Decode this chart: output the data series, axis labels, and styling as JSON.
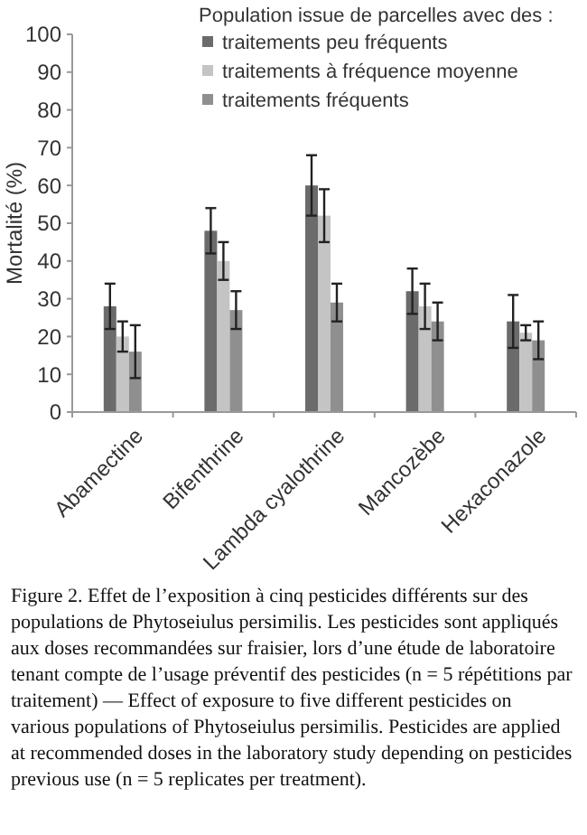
{
  "chart_data": {
    "type": "bar",
    "ylabel": "Mortalité (%)",
    "legend_title": "Population issue de parcelles avec des :",
    "categories": [
      "Abamectine",
      "Bifenthrine",
      "Lambda cyalothrine",
      "Mancozèbe",
      "Hexaconazole"
    ],
    "series": [
      {
        "name": "traitements peu fréquents",
        "color": "#6b6b6b",
        "values": [
          28,
          48,
          60,
          32,
          24
        ],
        "errors": [
          6,
          6,
          8,
          6,
          7
        ]
      },
      {
        "name": "traitements à fréquence moyenne",
        "color": "#c4c4c4",
        "values": [
          20,
          40,
          52,
          28,
          21
        ],
        "errors": [
          4,
          5,
          7,
          6,
          2
        ]
      },
      {
        "name": "traitements fréquents",
        "color": "#8f8f8f",
        "values": [
          16,
          27,
          29,
          24,
          19
        ],
        "errors": [
          7,
          5,
          5,
          5,
          5
        ]
      }
    ],
    "ylim": [
      0,
      100
    ],
    "yticks": [
      0,
      10,
      20,
      30,
      40,
      50,
      60,
      70,
      80,
      90,
      100
    ],
    "grid": false,
    "legend": "top right",
    "annotations": [
      "Figure 2. Effet de l’exposition à cinq pesticides différents sur des populations de Phytoseiulus persimilis. Les pesticides sont appliqués aux doses recommandées sur fraisier, lors d’une étude de laboratoire tenant compte de l’usage préventif des pesticides (n = 5 répétitions par traitement) — Effect of exposure to five different pesticides on various populations of Phytoseiulus persimilis. Pesticides are applied at recommended doses in the laboratory study depending on pesticides previous use (n = 5 replicates per treatment)."
    ]
  }
}
